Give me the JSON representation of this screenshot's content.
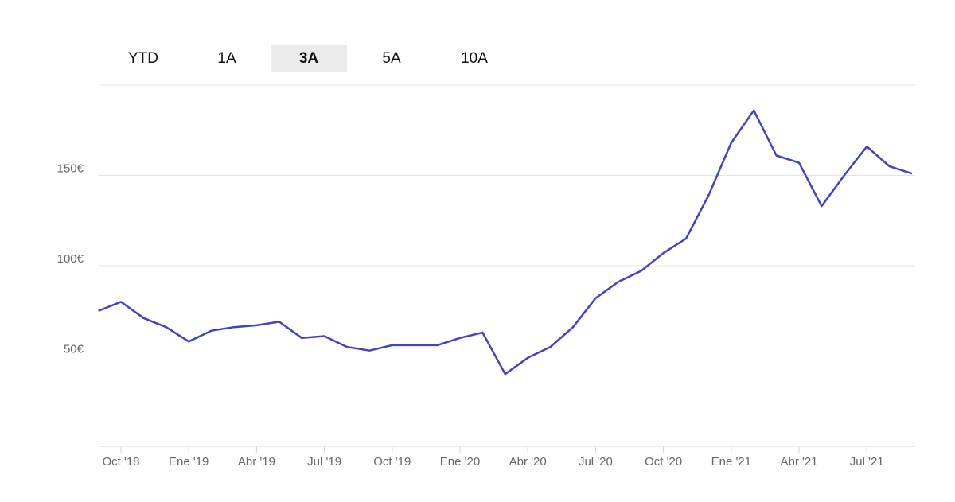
{
  "range_buttons": {
    "options": [
      "YTD",
      "1A",
      "3A",
      "5A",
      "10A"
    ],
    "selected": 2
  },
  "chart_data": {
    "type": "line",
    "x": [
      "2018-09",
      "2018-10",
      "2018-11",
      "2018-12",
      "2019-01",
      "2019-02",
      "2019-03",
      "2019-04",
      "2019-05",
      "2019-06",
      "2019-07",
      "2019-08",
      "2019-09",
      "2019-10",
      "2019-11",
      "2019-12",
      "2020-01",
      "2020-02",
      "2020-03",
      "2020-04",
      "2020-05",
      "2020-06",
      "2020-07",
      "2020-08",
      "2020-09",
      "2020-10",
      "2020-11",
      "2020-12",
      "2021-01",
      "2021-02",
      "2021-03",
      "2021-04",
      "2021-05",
      "2021-06",
      "2021-07",
      "2021-08",
      "2021-09"
    ],
    "series": [
      {
        "color": "#3f43c9",
        "values": [
          75,
          80,
          71,
          66,
          58,
          64,
          66,
          67,
          69,
          60,
          61,
          55,
          53,
          56,
          56,
          56,
          60,
          63,
          40,
          49,
          55,
          66,
          82,
          91,
          97,
          107,
          115,
          139,
          168,
          186,
          161,
          157,
          133,
          150,
          166,
          155,
          151
        ]
      }
    ],
    "ylim": [
      0,
      200
    ],
    "yticks": [
      {
        "value": 50,
        "label": "50€"
      },
      {
        "value": 100,
        "label": "100€"
      },
      {
        "value": 150,
        "label": "150€"
      }
    ],
    "xticks": [
      {
        "value": "2018-10",
        "label": "Oct '18"
      },
      {
        "value": "2019-01",
        "label": "Ene '19"
      },
      {
        "value": "2019-04",
        "label": "Abr '19"
      },
      {
        "value": "2019-07",
        "label": "Jul '19"
      },
      {
        "value": "2019-10",
        "label": "Oct '19"
      },
      {
        "value": "2020-01",
        "label": "Ene '20"
      },
      {
        "value": "2020-04",
        "label": "Abr '20"
      },
      {
        "value": "2020-07",
        "label": "Jul '20"
      },
      {
        "value": "2020-10",
        "label": "Oct '20"
      },
      {
        "value": "2021-01",
        "label": "Ene '21"
      },
      {
        "value": "2021-04",
        "label": "Abr '21"
      },
      {
        "value": "2021-07",
        "label": "Jul '21"
      }
    ],
    "grid": true
  }
}
